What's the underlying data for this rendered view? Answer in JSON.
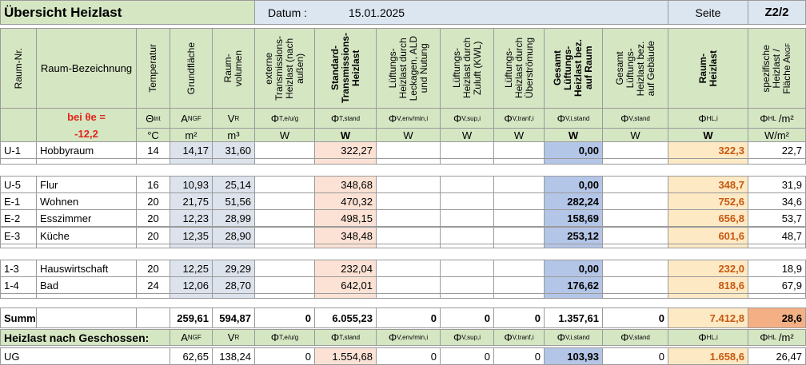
{
  "header": {
    "title": "Übersicht Heizlast",
    "date_label": "Datum :",
    "date": "15.01.2025",
    "page_label": "Seite",
    "page": "Z2/2"
  },
  "outdoor_temp": {
    "label": "bei θe =",
    "value": "-12,2"
  },
  "columns": [
    {
      "label": [
        "Raum-Nr."
      ]
    },
    {
      "label": [
        "Raum-Bezeichnung"
      ]
    },
    {
      "label": [
        "Temperatur"
      ],
      "symbol": "Θ",
      "symbol_sub": "int",
      "unit": "°C"
    },
    {
      "label": [
        "Grundfläche"
      ],
      "symbol": "A",
      "symbol_sub": "NGF",
      "unit": "m²"
    },
    {
      "label": [
        "Raum-",
        "volumen"
      ],
      "symbol": "V",
      "symbol_sub": "R",
      "unit": "m³"
    },
    {
      "label": [
        "externe",
        "Transmissions-",
        "Heizlast (nach",
        "außen)"
      ],
      "symbol": "Φ",
      "symbol_sub": "T,e/u/g",
      "unit": "W"
    },
    {
      "label": [
        "Standard-",
        "Transmissions-",
        "Heizlast"
      ],
      "bold": true,
      "symbol": "Φ",
      "symbol_sub": "T,stand",
      "unit": "W"
    },
    {
      "label": [
        "Lüftungs-",
        "Heizlast durch",
        "Leckagen, ALD",
        "und Nutung"
      ],
      "symbol": "Φ",
      "symbol_sub": "V,env/min,i",
      "unit": "W"
    },
    {
      "label": [
        "Lüftungs-",
        "Heizlast durch",
        "Zuluft (KWL)"
      ],
      "symbol": "Φ",
      "symbol_sub": "V,sup,i",
      "unit": "W"
    },
    {
      "label": [
        "Lüftungs-",
        "Heizlast durch",
        "Überströmung"
      ],
      "symbol": "Φ",
      "symbol_sub": "V,tranf,i",
      "unit": "W"
    },
    {
      "label": [
        "Gesamt",
        "Lüftungs-",
        "Heizlast bez.",
        "auf Raum"
      ],
      "bold": true,
      "symbol": "Φ",
      "symbol_sub": "V,i,stand",
      "unit": "W"
    },
    {
      "label": [
        "Gesamt",
        "Lüftungs-",
        "Heizlast bez.",
        "auf Gebäude"
      ],
      "symbol": "Φ",
      "symbol_sub": "V,stand",
      "unit": "W"
    },
    {
      "label": [
        "Raum-",
        "Heizlast"
      ],
      "bold": true,
      "symbol": "Φ",
      "symbol_sub": "HL,i",
      "unit": "W"
    },
    {
      "label": [
        "spezifische",
        "Heizlast /",
        "Fläche A"
      ],
      "label_sub": "NGF",
      "symbol": "Φ",
      "symbol_sub": "HL",
      "symbol_tail": "/m²",
      "unit": "W/m²"
    }
  ],
  "rows": [
    [
      "U-1",
      "Hobbyraum",
      "14",
      "14,17",
      "31,60",
      null,
      "322,27",
      null,
      null,
      null,
      "0,00",
      null,
      "322,3",
      "22,7"
    ],
    [
      "U-5",
      "Flur",
      "16",
      "10,93",
      "25,14",
      null,
      "348,68",
      null,
      null,
      null,
      "0,00",
      null,
      "348,7",
      "31,9"
    ],
    [
      "E-1",
      "Wohnen",
      "20",
      "21,75",
      "51,56",
      null,
      "470,32",
      null,
      null,
      null,
      "282,24",
      null,
      "752,6",
      "34,6"
    ],
    [
      "E-2",
      "Esszimmer",
      "20",
      "12,23",
      "28,99",
      null,
      "498,15",
      null,
      null,
      null,
      "158,69",
      null,
      "656,8",
      "53,7"
    ],
    [
      "E-3",
      "Küche",
      "20",
      "12,35",
      "28,90",
      null,
      "348,48",
      null,
      null,
      null,
      "253,12",
      null,
      "601,6",
      "48,7"
    ],
    [
      "1-3",
      "Hauswirtschaft",
      "20",
      "12,25",
      "29,29",
      null,
      "232,04",
      null,
      null,
      null,
      "0,00",
      null,
      "232,0",
      "18,9"
    ],
    [
      "1-4",
      "Bad",
      "24",
      "12,06",
      "28,70",
      null,
      "642,01",
      null,
      null,
      null,
      "176,62",
      null,
      "818,6",
      "67,9"
    ]
  ],
  "totals": [
    "Summen",
    null,
    null,
    "259,61",
    "594,87",
    "0",
    "6.055,23",
    "0",
    "0",
    "0",
    "1.357,61",
    "0",
    "7.412,8",
    "28,6"
  ],
  "floors": {
    "title": "Heizlast nach Geschossen:",
    "columns": [
      {
        "symbol": "A",
        "symbol_sub": "NGF"
      },
      {
        "symbol": "V",
        "symbol_sub": "R"
      },
      {
        "symbol": "Φ",
        "symbol_sub": "T,e/u/g"
      },
      {
        "symbol": "Φ",
        "symbol_sub": "T,stand"
      },
      {
        "symbol": "Φ",
        "symbol_sub": "V,env/min,i"
      },
      {
        "symbol": "Φ",
        "symbol_sub": "V,sup,i"
      },
      {
        "symbol": "Φ",
        "symbol_sub": "V,tranf,i"
      },
      {
        "symbol": "Φ",
        "symbol_sub": "V,i,stand"
      },
      {
        "symbol": "Φ",
        "symbol_sub": "V,stand"
      },
      {
        "symbol": "Φ",
        "symbol_sub": "HL,i"
      },
      {
        "symbol": "Φ",
        "symbol_sub": "HL",
        "symbol_tail": "/m²"
      }
    ],
    "rows": [
      [
        "UG",
        "62,65",
        "138,24",
        "0",
        "1.554,68",
        "0",
        "0",
        "0",
        "103,93",
        "0",
        "1.658,6",
        "26,47"
      ]
    ]
  }
}
